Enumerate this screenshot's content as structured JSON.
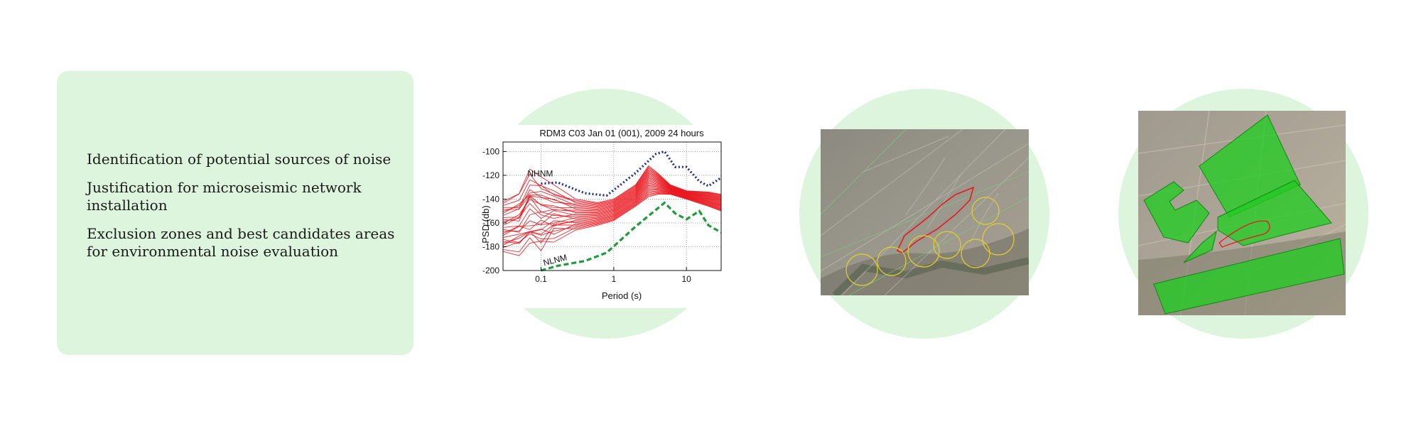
{
  "card": {
    "items": [
      "Identification of potential sources of noise",
      "Justification for microseismic network installation",
      "Exclusion zones and best candidates areas for environmental noise evaluation"
    ]
  },
  "colors": {
    "card_bg": "#dcf5dc",
    "psd_curves": "#e8141c",
    "nhnm": "#1f2d8c",
    "nlnm": "#1e9b3a",
    "exclusion_outline": "#e8141c",
    "noise_source_circles": "#e0d030",
    "candidate_zones": "#22cc22"
  },
  "chart_data": {
    "type": "line",
    "title": "RDM3 C03 Jan 01 (001), 2009 24 hours",
    "xlabel": "Period (s)",
    "ylabel": "PSD (db)",
    "x_scale": "log",
    "xlim": [
      0.03,
      30
    ],
    "ylim": [
      -200,
      -92
    ],
    "x_ticks": [
      "0.1",
      "1",
      "10"
    ],
    "y_ticks": [
      "-100",
      "-120",
      "-140",
      "-160",
      "-180",
      "-200"
    ],
    "grid": true,
    "series": [
      {
        "name": "NHNM",
        "style": "dotted",
        "x": [
          0.1,
          0.17,
          0.4,
          0.8,
          2,
          3.8,
          5,
          7,
          10,
          15,
          20,
          30
        ],
        "y": [
          -127,
          -126,
          -135,
          -137,
          -118,
          -102,
          -100,
          -113,
          -113,
          -125,
          -129,
          -122
        ]
      },
      {
        "name": "NLNM",
        "style": "dashed",
        "x": [
          0.1,
          0.17,
          0.4,
          0.8,
          2,
          3.8,
          5,
          7,
          10,
          15,
          20,
          30
        ],
        "y": [
          -200,
          -196,
          -192,
          -185,
          -163,
          -149,
          -143,
          -152,
          -157,
          -150,
          -162,
          -168
        ]
      }
    ],
    "psd_band": {
      "x": [
        0.03,
        0.05,
        0.07,
        0.1,
        0.15,
        0.3,
        0.6,
        1,
        2,
        3,
        4,
        6,
        10,
        20,
        30
      ],
      "y_upper": [
        -142,
        -138,
        -118,
        -125,
        -132,
        -140,
        -143,
        -140,
        -128,
        -112,
        -118,
        -128,
        -133,
        -134,
        -136
      ],
      "y_lower": [
        -184,
        -182,
        -180,
        -180,
        -172,
        -166,
        -162,
        -158,
        -146,
        -138,
        -136,
        -136,
        -140,
        -146,
        -150
      ]
    }
  }
}
